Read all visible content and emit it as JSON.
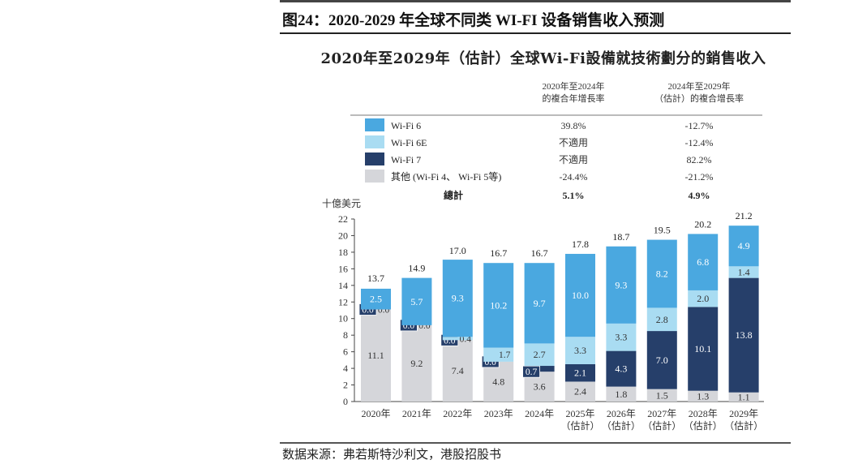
{
  "figure_title": "图24：2020-2029 年全球不同类 WI-FI 设备销售收入预测",
  "source": "数据来源：弗若斯特沙利文，港股招股书",
  "chart_data": {
    "type": "bar",
    "stacked": true,
    "title": "2020年至2029年（估計）全球Wi-Fi設備就技術劃分的銷售收入",
    "ylabel": "十億美元",
    "ylim": [
      0,
      22
    ],
    "yticks": [
      0,
      2,
      4,
      6,
      8,
      10,
      12,
      14,
      16,
      18,
      20,
      22
    ],
    "grid": false,
    "legend_placement": "top",
    "categories": [
      "2020年",
      "2021年",
      "2022年",
      "2023年",
      "2024年",
      "2025年",
      "2026年",
      "2027年",
      "2028年",
      "2029年"
    ],
    "category_sublabels": [
      "",
      "",
      "",
      "",
      "",
      "（估計）",
      "（估計）",
      "（估計）",
      "（估計）",
      "（估計）"
    ],
    "totals": [
      13.7,
      14.9,
      17.0,
      16.7,
      16.7,
      17.8,
      18.7,
      19.5,
      20.2,
      21.2
    ],
    "series": [
      {
        "name": "其他 (Wi-Fi 4、 Wi-Fi 5等)",
        "color": "#d5d6da",
        "label_color": "#333333",
        "values": [
          11.1,
          9.2,
          7.4,
          4.8,
          3.6,
          2.4,
          1.8,
          1.5,
          1.3,
          1.1
        ],
        "cagr_2020_2024": "-24.4%",
        "cagr_2024_2029": "-21.2%"
      },
      {
        "name": "Wi-Fi 7",
        "color": "#263f6a",
        "label_color": "#ffffff",
        "values": [
          0.0,
          0.0,
          0.0,
          0.0,
          0.7,
          2.1,
          4.3,
          7.0,
          10.1,
          13.8
        ],
        "cagr_2020_2024": "不適用",
        "cagr_2024_2029": "82.2%"
      },
      {
        "name": "Wi-Fi 6E",
        "color": "#a9dcf2",
        "label_color": "#333333",
        "values": [
          0.0,
          0.0,
          0.4,
          1.7,
          2.7,
          3.3,
          3.3,
          2.8,
          2.0,
          1.4
        ],
        "cagr_2020_2024": "不適用",
        "cagr_2024_2029": "-12.4%"
      },
      {
        "name": "Wi-Fi 6",
        "color": "#4aa8e0",
        "label_color": "#ffffff",
        "values": [
          2.5,
          5.7,
          9.3,
          10.2,
          9.7,
          10.0,
          9.3,
          8.2,
          6.8,
          4.9
        ],
        "cagr_2020_2024": "39.8%",
        "cagr_2024_2029": "-12.7%"
      }
    ],
    "legend_table": {
      "col1_header": [
        "2020年至2024年",
        "的複合年增長率"
      ],
      "col2_header": [
        "2024年至2029年",
        "（估計）的複合增長率"
      ],
      "order": [
        3,
        2,
        1,
        0
      ],
      "total_label": "總計",
      "total_cagr_2020_2024": "5.1%",
      "total_cagr_2024_2029": "4.9%"
    }
  }
}
